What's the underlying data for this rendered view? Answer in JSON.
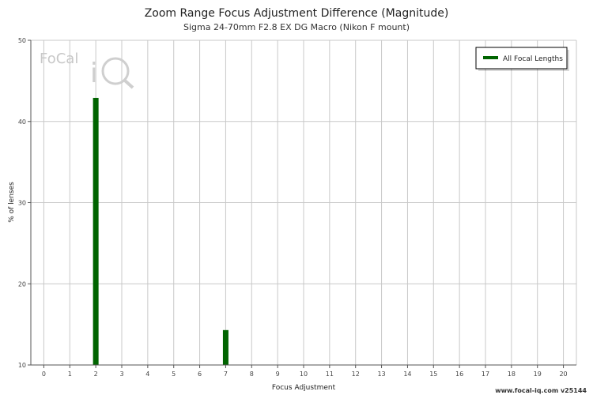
{
  "chart_data": {
    "type": "bar",
    "title": "Zoom Range Focus Adjustment Difference (Magnitude)",
    "subtitle": "Sigma 24-70mm F2.8 EX DG Macro (Nikon F mount)",
    "xlabel": "Focus Adjustment",
    "ylabel": "% of lenses",
    "categories": [
      "0",
      "1",
      "2",
      "3",
      "4",
      "5",
      "6",
      "7",
      "8",
      "9",
      "10",
      "11",
      "12",
      "13",
      "14",
      "15",
      "16",
      "17",
      "18",
      "19",
      "20"
    ],
    "series": [
      {
        "name": "All Focal Lengths",
        "color": "#006400",
        "values": [
          0,
          0,
          42.9,
          0,
          0,
          0,
          0,
          14.3,
          0,
          0,
          0,
          0,
          0,
          0,
          0,
          0,
          0,
          0,
          0,
          0,
          0
        ]
      }
    ],
    "ylim": [
      10,
      50
    ],
    "yticks": [
      "10",
      "20",
      "30",
      "40",
      "50"
    ],
    "grid": true,
    "legend_position": "top-right"
  },
  "watermark": {
    "logo_text": "FoCal iQ"
  },
  "footer": {
    "credit": "www.focal-iq.com  v25144"
  }
}
